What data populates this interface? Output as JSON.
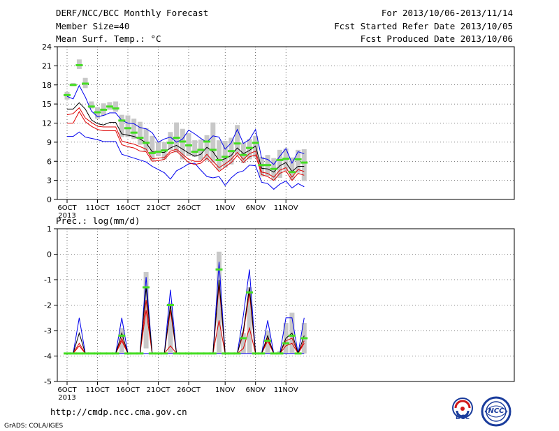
{
  "header": {
    "title": "DERF/NCC/BCC Monthly Forecast",
    "member": "Member Size=40",
    "variable": "Mean Surf. Temp.: °C",
    "period": "For 2013/10/06-2013/11/14",
    "started": "Fcst Started Refer Date 2013/10/05",
    "produced": "Fcst Produced Date 2013/10/06"
  },
  "footer": {
    "url": "http://cmdp.ncc.cma.gov.cn",
    "credit": "GrADS: COLA/IGES",
    "logo_bcc": "BCC",
    "logo_ncc": "NCC"
  },
  "colors": {
    "box": "#c8c8c8",
    "median": "#44dd22",
    "envelope": "#0000ee",
    "mean": "#000000",
    "lower": "#dd0000",
    "grid": "#000000"
  },
  "chart_data": [
    {
      "type": "box-envelope",
      "title": "Mean Surf. Temp.: °C",
      "x_start": "2013-10-06",
      "x_step_days": 1,
      "year_label": "2013",
      "xticks": [
        {
          "day": 0,
          "label": "6OCT"
        },
        {
          "day": 5,
          "label": "11OCT"
        },
        {
          "day": 10,
          "label": "16OCT"
        },
        {
          "day": 15,
          "label": "21OCT"
        },
        {
          "day": 20,
          "label": "26OCT"
        },
        {
          "day": 26,
          "label": "1NOV"
        },
        {
          "day": 31,
          "label": "6NOV"
        },
        {
          "day": 36,
          "label": "11NOV"
        }
      ],
      "ylim": [
        0,
        24
      ],
      "yticks": [
        0,
        3,
        6,
        9,
        12,
        15,
        18,
        21,
        24
      ],
      "grid": true,
      "series": {
        "upper": [
          16.2,
          15.8,
          17.9,
          16.1,
          13.9,
          13.0,
          13.2,
          13.6,
          13.6,
          12.4,
          12.0,
          11.9,
          11.3,
          11.1,
          10.5,
          9.0,
          9.5,
          9.8,
          9.0,
          9.5,
          10.9,
          10.3,
          9.6,
          9.0,
          10.0,
          9.8,
          7.9,
          8.9,
          11.0,
          8.8,
          9.4,
          11.0,
          6.5,
          6.3,
          5.5,
          6.8,
          8.0,
          5.7,
          7.5,
          7.2
        ],
        "mean": [
          14.2,
          14.2,
          15.2,
          14.2,
          12.5,
          11.9,
          11.7,
          12.1,
          12.1,
          10.3,
          10.1,
          9.9,
          9.5,
          8.9,
          7.5,
          7.4,
          7.4,
          8.1,
          8.5,
          7.9,
          7.3,
          6.8,
          7.1,
          8.2,
          7.5,
          6.1,
          6.4,
          6.9,
          8.1,
          7.2,
          7.7,
          8.4,
          4.9,
          4.8,
          4.3,
          5.3,
          5.8,
          4.4,
          5.2,
          5.2
        ],
        "lower2": [
          13.3,
          13.5,
          14.4,
          12.8,
          12.1,
          11.5,
          11.4,
          11.4,
          11.4,
          9.2,
          8.9,
          8.7,
          8.3,
          7.9,
          6.4,
          6.5,
          6.6,
          7.6,
          7.9,
          7.1,
          6.3,
          6.0,
          6.0,
          7.1,
          6.0,
          5.0,
          5.6,
          6.3,
          7.4,
          6.3,
          7.2,
          7.6,
          4.3,
          4.1,
          3.5,
          4.6,
          5.0,
          3.5,
          4.7,
          4.4
        ],
        "lower": [
          12.0,
          12.0,
          13.8,
          12.2,
          11.5,
          11.0,
          10.8,
          10.8,
          10.8,
          8.6,
          8.3,
          8.1,
          7.6,
          7.5,
          6.0,
          6.1,
          6.3,
          7.3,
          7.6,
          6.7,
          5.8,
          5.5,
          5.7,
          6.5,
          5.5,
          4.4,
          5.1,
          5.8,
          6.9,
          5.8,
          6.7,
          7.0,
          3.9,
          3.6,
          3.0,
          4.1,
          4.5,
          3.0,
          4.1,
          3.8
        ],
        "bottom": [
          9.9,
          9.9,
          10.6,
          9.8,
          9.6,
          9.4,
          9.1,
          9.1,
          9.1,
          7.1,
          6.8,
          6.5,
          6.2,
          5.9,
          5.2,
          4.7,
          4.2,
          3.2,
          4.5,
          5.0,
          5.6,
          5.7,
          4.6,
          3.6,
          3.4,
          3.6,
          2.2,
          3.4,
          4.2,
          4.5,
          5.4,
          5.3,
          2.7,
          2.5,
          1.6,
          2.4,
          2.9,
          1.8,
          2.5,
          2.0
        ],
        "median": [
          16.4,
          18.0,
          21.1,
          18.2,
          14.6,
          13.7,
          14.1,
          14.6,
          14.3,
          12.4,
          11.2,
          10.5,
          9.7,
          8.9,
          7.3,
          7.5,
          7.7,
          8.9,
          9.7,
          9.1,
          8.5,
          7.5,
          7.8,
          9.1,
          7.8,
          6.2,
          6.7,
          7.6,
          8.8,
          7.0,
          8.1,
          8.9,
          5.4,
          5.4,
          4.8,
          6.2,
          6.4,
          4.3,
          6.3,
          5.8
        ],
        "box_top": [
          16.9,
          18.3,
          22.0,
          19.1,
          15.4,
          14.5,
          15.1,
          15.3,
          15.4,
          13.3,
          13.2,
          12.7,
          12.2,
          11.2,
          10.0,
          9.1,
          9.0,
          10.6,
          12.1,
          11.1,
          10.4,
          9.3,
          9.4,
          10.1,
          12.1,
          9.3,
          9.2,
          9.7,
          11.7,
          8.9,
          9.5,
          10.0,
          6.7,
          7.0,
          6.5,
          7.8,
          8.0,
          6.6,
          7.8,
          7.9
        ],
        "box_bottom": [
          15.7,
          17.8,
          20.5,
          17.5,
          14.3,
          12.7,
          13.2,
          14.1,
          13.8,
          9.8,
          9.8,
          9.5,
          8.6,
          7.6,
          6.1,
          6.8,
          6.3,
          7.8,
          7.4,
          6.3,
          6.8,
          6.7,
          6.2,
          6.1,
          5.8,
          4.6,
          5.0,
          5.5,
          6.9,
          5.7,
          6.3,
          6.6,
          3.6,
          3.7,
          3.0,
          3.4,
          4.5,
          3.1,
          4.2,
          2.9
        ]
      }
    },
    {
      "type": "box-envelope",
      "title": "Prec.: log(mm/d)",
      "x_start": "2013-10-06",
      "x_step_days": 1,
      "year_label": "2013",
      "xticks": [
        {
          "day": 0,
          "label": "6OCT"
        },
        {
          "day": 5,
          "label": "11OCT"
        },
        {
          "day": 10,
          "label": "16OCT"
        },
        {
          "day": 15,
          "label": "21OCT"
        },
        {
          "day": 20,
          "label": "26OCT"
        },
        {
          "day": 26,
          "label": "1NOV"
        },
        {
          "day": 31,
          "label": "6NOV"
        },
        {
          "day": 36,
          "label": "11NOV"
        }
      ],
      "ylim": [
        -5,
        1
      ],
      "yticks": [
        -5,
        -4,
        -3,
        -2,
        -1,
        0,
        1
      ],
      "grid": true,
      "baseline": -3.9,
      "series": {
        "upper": [
          -3.9,
          -3.9,
          -2.5,
          -3.9,
          -3.9,
          -3.9,
          -3.9,
          -3.9,
          -3.9,
          -2.5,
          -3.9,
          -3.9,
          -3.9,
          -0.9,
          -3.9,
          -3.9,
          -3.9,
          -1.4,
          -3.9,
          -3.9,
          -3.9,
          -3.9,
          -3.9,
          -3.9,
          -3.9,
          -0.3,
          -3.9,
          -3.9,
          -3.9,
          -2.4,
          -0.6,
          -3.9,
          -3.9,
          -2.6,
          -3.9,
          -3.9,
          -2.5,
          -2.5,
          -3.9,
          -2.5
        ],
        "mean": [
          -3.9,
          -3.9,
          -3.1,
          -3.9,
          -3.9,
          -3.9,
          -3.9,
          -3.9,
          -3.9,
          -3.1,
          -3.9,
          -3.9,
          -3.9,
          -1.3,
          -3.9,
          -3.9,
          -3.9,
          -2.0,
          -3.9,
          -3.9,
          -3.9,
          -3.9,
          -3.9,
          -3.9,
          -3.9,
          -1.0,
          -3.9,
          -3.9,
          -3.9,
          -3.0,
          -1.3,
          -3.9,
          -3.9,
          -3.2,
          -3.9,
          -3.9,
          -3.3,
          -3.1,
          -3.9,
          -3.2
        ],
        "lower2": [
          -3.9,
          -3.9,
          -3.5,
          -3.9,
          -3.9,
          -3.9,
          -3.9,
          -3.9,
          -3.9,
          -3.3,
          -3.9,
          -3.9,
          -3.9,
          -1.8,
          -3.9,
          -3.9,
          -3.9,
          -2.2,
          -3.9,
          -3.9,
          -3.9,
          -3.9,
          -3.9,
          -3.9,
          -3.9,
          -1.2,
          -3.9,
          -3.9,
          -3.9,
          -3.1,
          -1.5,
          -3.9,
          -3.9,
          -3.3,
          -3.9,
          -3.9,
          -3.4,
          -3.3,
          -3.9,
          -3.4
        ],
        "lower": [
          -3.9,
          -3.9,
          -3.6,
          -3.9,
          -3.9,
          -3.9,
          -3.9,
          -3.9,
          -3.9,
          -3.4,
          -3.9,
          -3.9,
          -3.9,
          -2.2,
          -3.9,
          -3.9,
          -3.9,
          -3.6,
          -3.9,
          -3.9,
          -3.9,
          -3.9,
          -3.9,
          -3.9,
          -3.9,
          -2.6,
          -3.9,
          -3.9,
          -3.9,
          -3.7,
          -2.9,
          -3.9,
          -3.9,
          -3.4,
          -3.9,
          -3.9,
          -3.6,
          -3.5,
          -3.9,
          -3.5
        ],
        "bottom": [
          -3.9,
          -3.9,
          -3.9,
          -3.9,
          -3.9,
          -3.9,
          -3.9,
          -3.9,
          -3.9,
          -3.9,
          -3.9,
          -3.9,
          -3.9,
          -3.9,
          -3.9,
          -3.9,
          -3.9,
          -3.9,
          -3.9,
          -3.9,
          -3.9,
          -3.9,
          -3.9,
          -3.9,
          -3.9,
          -3.9,
          -3.9,
          -3.9,
          -3.9,
          -3.9,
          -3.9,
          -3.9,
          -3.9,
          -3.9,
          -3.9,
          -3.9,
          -3.9,
          -3.9,
          -3.9,
          -3.9
        ],
        "median": [
          -3.9,
          -3.9,
          -3.9,
          -3.9,
          -3.9,
          -3.9,
          -3.9,
          -3.9,
          -3.9,
          -3.2,
          -3.9,
          -3.9,
          -3.9,
          -1.3,
          -3.9,
          -3.9,
          -3.9,
          -2.0,
          -3.9,
          -3.9,
          -3.9,
          -3.9,
          -3.9,
          -3.9,
          -3.9,
          -0.6,
          -3.9,
          -3.9,
          -3.9,
          -3.3,
          -1.5,
          -3.9,
          -3.9,
          -3.4,
          -3.9,
          -3.9,
          -3.5,
          -3.2,
          -3.9,
          -3.3
        ],
        "box_top": [
          null,
          null,
          null,
          null,
          null,
          null,
          null,
          null,
          null,
          -2.9,
          null,
          null,
          null,
          -0.7,
          null,
          null,
          null,
          -1.9,
          null,
          null,
          null,
          null,
          null,
          null,
          null,
          0.1,
          null,
          null,
          null,
          -3.1,
          -1.3,
          null,
          null,
          -3.0,
          null,
          -3.8,
          -2.7,
          -2.3,
          null,
          -2.7
        ],
        "box_bottom": [
          null,
          null,
          null,
          null,
          null,
          null,
          null,
          null,
          null,
          -3.9,
          null,
          null,
          null,
          -3.7,
          null,
          null,
          null,
          -3.9,
          null,
          null,
          null,
          null,
          null,
          null,
          null,
          -3.9,
          null,
          null,
          null,
          -3.9,
          -3.9,
          null,
          null,
          -3.9,
          null,
          -3.9,
          -3.9,
          -3.9,
          null,
          -3.9
        ]
      }
    }
  ]
}
